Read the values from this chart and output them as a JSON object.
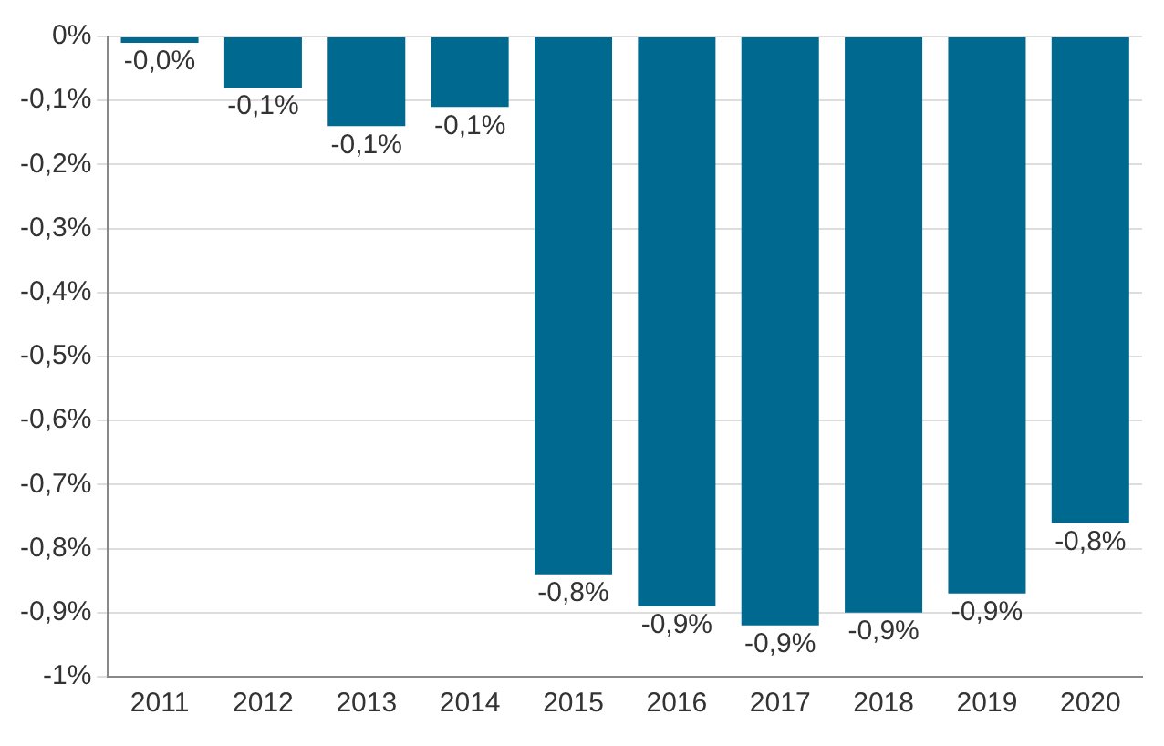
{
  "chart_data": {
    "type": "bar",
    "categories": [
      "2011",
      "2012",
      "2013",
      "2014",
      "2015",
      "2016",
      "2017",
      "2018",
      "2019",
      "2020"
    ],
    "values": [
      -0.01,
      -0.08,
      -0.14,
      -0.11,
      -0.84,
      -0.89,
      -0.92,
      -0.9,
      -0.87,
      -0.76
    ],
    "value_labels": [
      "-0,0%",
      "-0,1%",
      "-0,1%",
      "-0,1%",
      "-0,8%",
      "-0,9%",
      "-0,9%",
      "-0,9%",
      "-0,9%",
      "-0,8%"
    ],
    "color": "#006990",
    "ylim": [
      -1,
      0
    ],
    "yticks": [
      {
        "value": 0,
        "label": "0%"
      },
      {
        "value": -0.1,
        "label": "-0,1%"
      },
      {
        "value": -0.2,
        "label": "-0,2%"
      },
      {
        "value": -0.3,
        "label": "-0,3%"
      },
      {
        "value": -0.4,
        "label": "-0,4%"
      },
      {
        "value": -0.5,
        "label": "-0,5%"
      },
      {
        "value": -0.6,
        "label": "-0,6%"
      },
      {
        "value": -0.7,
        "label": "-0,7%"
      },
      {
        "value": -0.8,
        "label": "-0,8%"
      },
      {
        "value": -0.9,
        "label": "-0,9%"
      },
      {
        "value": -1,
        "label": "-1%"
      }
    ],
    "grid": "y",
    "legend": false
  }
}
